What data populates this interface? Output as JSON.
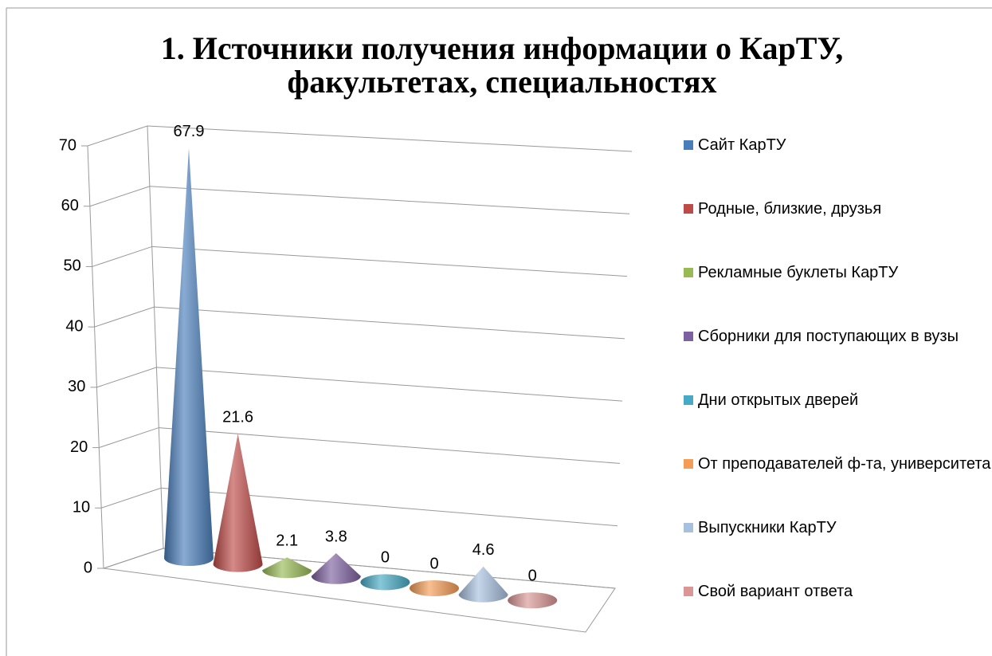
{
  "chart_data": {
    "type": "cone",
    "title": "1. Источники получения информации о КарТУ, факультетах, специальностях",
    "series": [
      {
        "name": "Сайт КарТУ",
        "color": "#4a7ebb",
        "values": [
          67.9
        ]
      },
      {
        "name": "Родные, близкие, друзья",
        "color": "#be4b48",
        "values": [
          21.6
        ]
      },
      {
        "name": "Рекламные буклеты КарТУ",
        "color": "#98b954",
        "values": [
          2.1
        ]
      },
      {
        "name": "Сборники для поступающих в вузы",
        "color": "#7d60a0",
        "values": [
          3.8
        ]
      },
      {
        "name": "Дни открытых дверей",
        "color": "#46aac5",
        "values": [
          0
        ]
      },
      {
        "name": "От преподавателей ф-та, университета",
        "color": "#f59d56",
        "values": [
          0
        ]
      },
      {
        "name": "Выпускники КарТУ",
        "color": "#a7c0de",
        "values": [
          4.6
        ]
      },
      {
        "name": "Свой вариант ответа",
        "color": "#d99694",
        "values": [
          0
        ]
      }
    ],
    "ylim": [
      0,
      70
    ],
    "yticks": [
      0,
      10,
      20,
      30,
      40,
      50,
      60,
      70
    ],
    "grid": true,
    "legend": "right"
  }
}
